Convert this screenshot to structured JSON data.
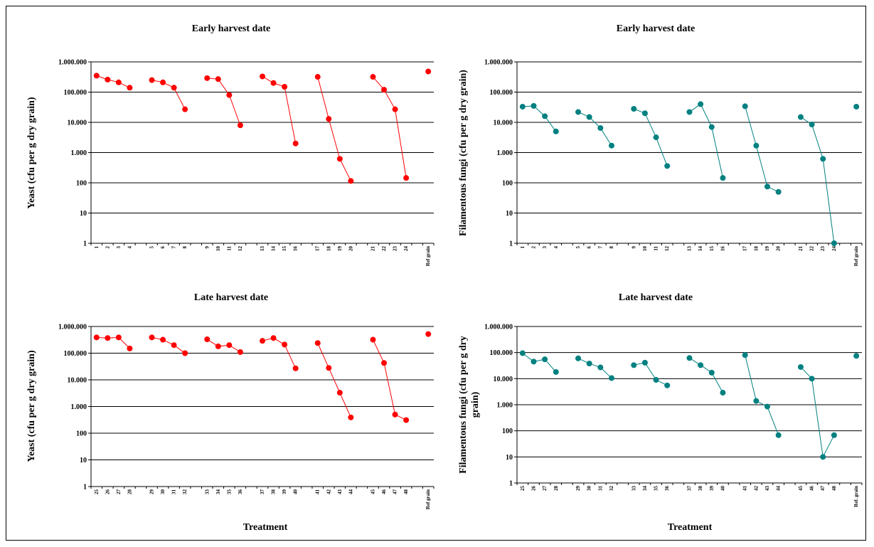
{
  "chart_data": [
    {
      "type": "line",
      "title": "Early harvest date",
      "xlabel": "",
      "ylabel": "Yeast (cfu per g dry grain)",
      "yscale": "log",
      "ylim": [
        1,
        1000000
      ],
      "ytick_labels": [
        "1",
        "10",
        "100",
        "1.000",
        "10.000",
        "100.000",
        "1.000.000"
      ],
      "marker_color": "#ff0000",
      "slots": [
        "1",
        "2",
        "3",
        "4",
        "",
        "5",
        "6",
        "7",
        "8",
        "",
        "9",
        "10",
        "11",
        "12",
        "",
        "13",
        "14",
        "15",
        "16",
        "",
        "17",
        "18",
        "19",
        "20",
        "",
        "21",
        "22",
        "23",
        "24",
        "",
        "Ref grain"
      ],
      "series": [
        {
          "x": [
            "1",
            "2",
            "3",
            "4"
          ],
          "values": [
            350000,
            260000,
            210000,
            140000
          ]
        },
        {
          "x": [
            "5",
            "6",
            "7",
            "8"
          ],
          "values": [
            250000,
            210000,
            140000,
            27000
          ]
        },
        {
          "x": [
            "9",
            "10",
            "11",
            "12"
          ],
          "values": [
            290000,
            270000,
            80000,
            8000
          ]
        },
        {
          "x": [
            "13",
            "14",
            "15",
            "16"
          ],
          "values": [
            330000,
            200000,
            150000,
            2000
          ]
        },
        {
          "x": [
            "17",
            "18",
            "19",
            "20"
          ],
          "values": [
            320000,
            13000,
            620,
            115
          ]
        },
        {
          "x": [
            "21",
            "22",
            "23",
            "24"
          ],
          "values": [
            320000,
            120000,
            27000,
            145
          ]
        },
        {
          "x": [
            "Ref grain"
          ],
          "values": [
            480000
          ]
        }
      ]
    },
    {
      "type": "line",
      "title": "Early harvest date",
      "xlabel": "",
      "ylabel": "Filamentous fungi (cfu per g dry grain)",
      "yscale": "log",
      "ylim": [
        1,
        1000000
      ],
      "ytick_labels": [
        "1",
        "10",
        "100",
        "1.000",
        "10.000",
        "100.000",
        "1.000.000"
      ],
      "marker_color": "#008080",
      "slots": [
        "1",
        "2",
        "3",
        "4",
        "",
        "5",
        "6",
        "7",
        "8",
        "",
        "9",
        "10",
        "11",
        "12",
        "",
        "13",
        "14",
        "15",
        "16",
        "",
        "17",
        "18",
        "19",
        "20",
        "",
        "21",
        "22",
        "23",
        "24",
        "",
        "Ref grain"
      ],
      "series": [
        {
          "x": [
            "1",
            "2",
            "3",
            "4"
          ],
          "values": [
            33000,
            35000,
            16000,
            5000
          ]
        },
        {
          "x": [
            "5",
            "6",
            "7",
            "8"
          ],
          "values": [
            22000,
            15000,
            6500,
            1700
          ]
        },
        {
          "x": [
            "9",
            "10",
            "11",
            "12"
          ],
          "values": [
            28000,
            20000,
            3200,
            360
          ]
        },
        {
          "x": [
            "13",
            "14",
            "15",
            "16"
          ],
          "values": [
            22000,
            40000,
            7000,
            145
          ]
        },
        {
          "x": [
            "17",
            "18",
            "19",
            "20"
          ],
          "values": [
            34000,
            1700,
            75,
            50
          ]
        },
        {
          "x": [
            "21",
            "22",
            "23",
            "24"
          ],
          "values": [
            15000,
            8500,
            620,
            1
          ]
        },
        {
          "x": [
            "Ref grain"
          ],
          "values": [
            33000
          ]
        }
      ]
    },
    {
      "type": "line",
      "title": "Late harvest date",
      "xlabel": "Treatment",
      "ylabel": "Yeast (cfu per g dry grain)",
      "yscale": "log",
      "ylim": [
        1,
        1000000
      ],
      "ytick_labels": [
        "1",
        "10",
        "100",
        "1.000",
        "10.000",
        "100.000",
        "1.000.000"
      ],
      "marker_color": "#ff0000",
      "slots": [
        "25",
        "26",
        "27",
        "28",
        "",
        "29",
        "30",
        "31",
        "32",
        "",
        "33",
        "34",
        "35",
        "36",
        "",
        "37",
        "38",
        "39",
        "40",
        "",
        "41",
        "42",
        "43",
        "44",
        "",
        "45",
        "46",
        "47",
        "48",
        "",
        "Ref grain"
      ],
      "series": [
        {
          "x": [
            "25",
            "26",
            "27",
            "28"
          ],
          "values": [
            390000,
            370000,
            390000,
            150000
          ]
        },
        {
          "x": [
            "29",
            "30",
            "31",
            "32"
          ],
          "values": [
            390000,
            320000,
            200000,
            100000
          ]
        },
        {
          "x": [
            "33",
            "34",
            "35",
            "36"
          ],
          "values": [
            330000,
            180000,
            200000,
            110000
          ]
        },
        {
          "x": [
            "37",
            "38",
            "39",
            "40"
          ],
          "values": [
            290000,
            370000,
            210000,
            27000
          ]
        },
        {
          "x": [
            "41",
            "42",
            "43",
            "44"
          ],
          "values": [
            240000,
            28000,
            3300,
            390
          ]
        },
        {
          "x": [
            "45",
            "46",
            "47",
            "48"
          ],
          "values": [
            320000,
            43000,
            500,
            310
          ]
        },
        {
          "x": [
            "Ref grain"
          ],
          "values": [
            520000
          ]
        }
      ]
    },
    {
      "type": "line",
      "title": "Late harvest date",
      "xlabel": "Treatment",
      "ylabel": "Filamentous fungi (cfu per g dry grain)",
      "yscale": "log",
      "ylim": [
        1,
        1000000
      ],
      "ytick_labels": [
        "1",
        "10",
        "100",
        "1.000",
        "10.000",
        "100.000",
        "1.000.000"
      ],
      "marker_color": "#008080",
      "slots": [
        "25",
        "26",
        "27",
        "28",
        "",
        "29",
        "30",
        "31",
        "32",
        "",
        "33",
        "34",
        "35",
        "36",
        "",
        "37",
        "38",
        "39",
        "40",
        "",
        "41",
        "42",
        "43",
        "44",
        "",
        "45",
        "46",
        "47",
        "48",
        "",
        "Ref. grain"
      ],
      "series": [
        {
          "x": [
            "25",
            "26",
            "27",
            "28"
          ],
          "values": [
            95000,
            45000,
            55000,
            18000
          ]
        },
        {
          "x": [
            "29",
            "30",
            "31",
            "32"
          ],
          "values": [
            60000,
            38000,
            27000,
            10500
          ]
        },
        {
          "x": [
            "33",
            "34",
            "35",
            "36"
          ],
          "values": [
            33000,
            41000,
            9000,
            5500
          ]
        },
        {
          "x": [
            "37",
            "38",
            "39",
            "40"
          ],
          "values": [
            62000,
            33000,
            17000,
            2900
          ]
        },
        {
          "x": [
            "41",
            "42",
            "43",
            "44"
          ],
          "values": [
            80000,
            1400,
            850,
            68
          ]
        },
        {
          "x": [
            "45",
            "46",
            "47",
            "48"
          ],
          "values": [
            28000,
            10000,
            10,
            68
          ]
        },
        {
          "x": [
            "Ref. grain"
          ],
          "values": [
            75000
          ]
        }
      ]
    }
  ]
}
